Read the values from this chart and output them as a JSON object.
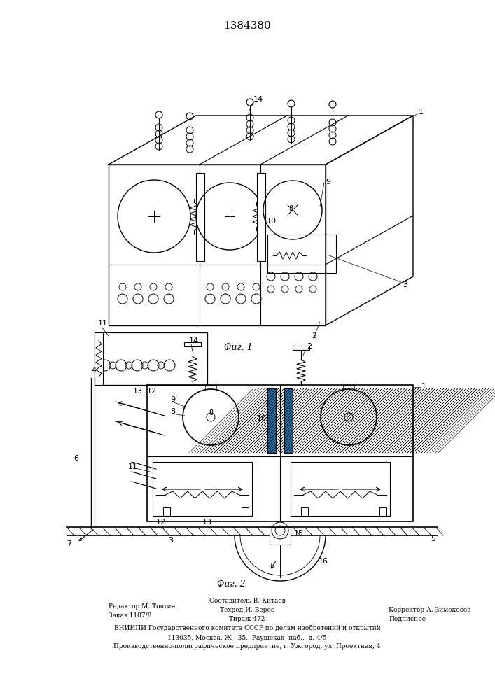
{
  "title_number": "1384380",
  "fig1_caption": "Фиг. 1",
  "fig2_caption": "Фиг. 2",
  "bg_color": "#ffffff",
  "line_color": "#000000"
}
